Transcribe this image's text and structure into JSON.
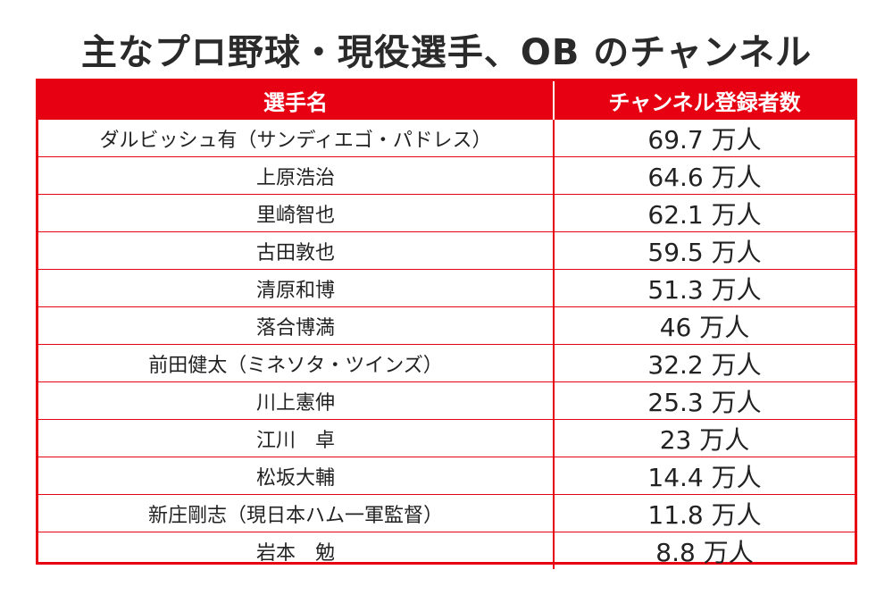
{
  "title": "主なプロ野球・現役選手、OB のチャンネル",
  "table": {
    "headers": {
      "name": "選手名",
      "count": "チャンネル登録者数"
    },
    "rows": [
      {
        "name": "ダルビッシュ有（サンディエゴ・パドレス）",
        "count": "69.7 万人"
      },
      {
        "name": "上原浩治",
        "count": "64.6 万人"
      },
      {
        "name": "里崎智也",
        "count": "62.1 万人"
      },
      {
        "name": "古田敦也",
        "count": "59.5 万人"
      },
      {
        "name": "清原和博",
        "count": "51.3 万人"
      },
      {
        "name": "落合博満",
        "count": "46 万人"
      },
      {
        "name": "前田健太（ミネソタ・ツインズ）",
        "count": "32.2 万人"
      },
      {
        "name": "川上憲伸",
        "count": "25.3 万人"
      },
      {
        "name": "江川　卓",
        "count": "23 万人"
      },
      {
        "name": "松坂大輔",
        "count": "14.4 万人"
      },
      {
        "name": "新庄剛志（現日本ハム一軍監督）",
        "count": "11.8 万人"
      },
      {
        "name": "岩本　勉",
        "count": "8.8 万人"
      }
    ]
  },
  "colors": {
    "accent": "#e60012",
    "header_text": "#ffffff",
    "text": "#222222"
  }
}
